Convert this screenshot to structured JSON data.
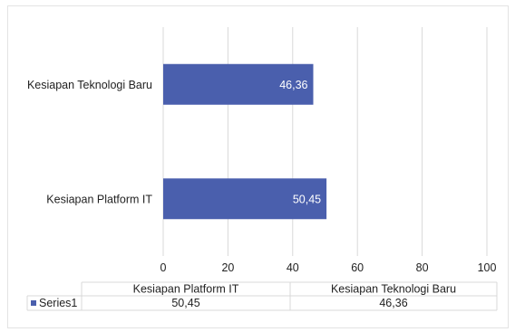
{
  "chart_data": {
    "type": "bar",
    "orientation": "horizontal",
    "categories": [
      "Kesiapan Platform IT",
      "Kesiapan Teknologi Baru"
    ],
    "series": [
      {
        "name": "Series1",
        "values": [
          50.45,
          46.36
        ],
        "labels": [
          "50,45",
          "46,36"
        ],
        "color": "#4a5fad"
      }
    ],
    "xlim": [
      0,
      100
    ],
    "xticks": [
      "0",
      "20",
      "40",
      "60",
      "80",
      "100"
    ],
    "grid": true,
    "legend": "data-table-below"
  }
}
